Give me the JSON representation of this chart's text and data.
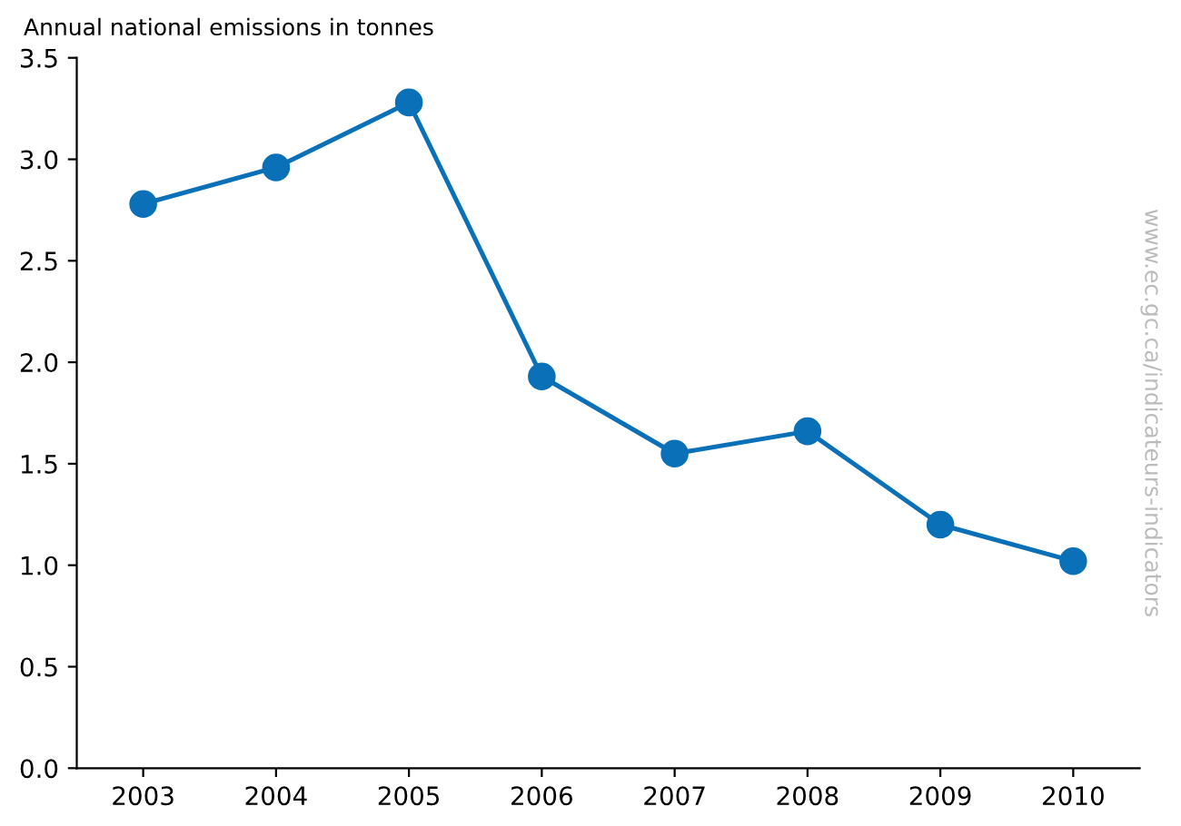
{
  "chart_data": {
    "type": "line",
    "ylabel": "Annual national emissions in tonnes",
    "categories": [
      "2003",
      "2004",
      "2005",
      "2006",
      "2007",
      "2008",
      "2009",
      "2010"
    ],
    "series": [
      {
        "color": "#0a70b8",
        "values": [
          2.78,
          2.96,
          3.28,
          1.93,
          1.55,
          1.66,
          1.2,
          1.02
        ]
      }
    ],
    "ylim": [
      0,
      3.5
    ],
    "yticks": [
      {
        "value": 0,
        "label": "0.0"
      },
      {
        "value": 0.5,
        "label": "0.5"
      },
      {
        "value": 1,
        "label": "1.0"
      },
      {
        "value": 1.5,
        "label": "1.5"
      },
      {
        "value": 2,
        "label": "2.0"
      },
      {
        "value": 2.5,
        "label": "2.5"
      },
      {
        "value": 3,
        "label": "3.0"
      },
      {
        "value": 3.5,
        "label": "3.5"
      }
    ],
    "marker": "circle",
    "line_style": "solid",
    "grid": false,
    "legend": false,
    "annotations": [
      "www.ec.gc.ca/indicateurs-indicators"
    ]
  }
}
